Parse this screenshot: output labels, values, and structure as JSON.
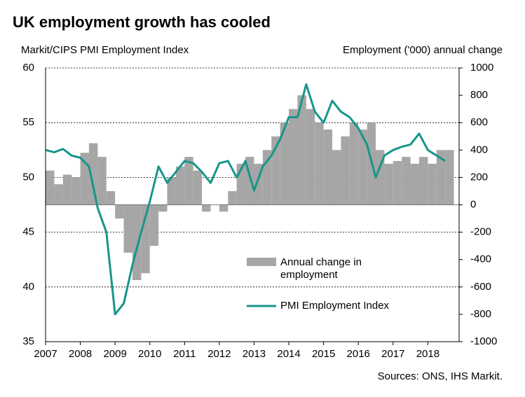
{
  "chart_data": {
    "type": "bar-line",
    "title": "UK employment growth has cooled",
    "y_label": "Markit/CIPS PMI Employment Index",
    "y2_label": "Employment ('000) annual change",
    "source": "Sources: ONS,  IHS Markit.",
    "xlim": [
      2007,
      2018.9
    ],
    "xticks": [
      2007,
      2008,
      2009,
      2010,
      2011,
      2012,
      2013,
      2014,
      2015,
      2016,
      2017,
      2018
    ],
    "ylim": [
      35,
      60
    ],
    "yticks": [
      35,
      40,
      45,
      50,
      55,
      60
    ],
    "y2lim": [
      -1000,
      1000
    ],
    "y2ticks": [
      -1000,
      -800,
      -600,
      -400,
      -200,
      0,
      200,
      400,
      600,
      800,
      1000
    ],
    "grid": true,
    "legend": "lower-center",
    "x": [
      2007,
      2007.25,
      2007.5,
      2007.75,
      2008,
      2008.25,
      2008.5,
      2008.75,
      2009,
      2009.25,
      2009.5,
      2009.75,
      2010,
      2010.25,
      2010.5,
      2010.75,
      2011,
      2011.25,
      2011.5,
      2011.75,
      2012,
      2012.25,
      2012.5,
      2012.75,
      2013,
      2013.25,
      2013.5,
      2013.75,
      2014,
      2014.25,
      2014.5,
      2014.75,
      2015,
      2015.25,
      2015.5,
      2015.75,
      2016,
      2016.25,
      2016.5,
      2016.75,
      2017,
      2017.25,
      2017.5,
      2017.75,
      2018,
      2018.25,
      2018.5
    ],
    "series": [
      {
        "name": "Annual change in employment",
        "type": "bar",
        "axis": "y2",
        "color": "#a6a6a6",
        "values": [
          250,
          150,
          220,
          200,
          380,
          450,
          350,
          100,
          -100,
          -350,
          -550,
          -500,
          -300,
          -50,
          200,
          280,
          350,
          250,
          -50,
          0,
          -50,
          100,
          300,
          350,
          300,
          400,
          500,
          600,
          700,
          800,
          700,
          600,
          550,
          400,
          500,
          600,
          550,
          600,
          400,
          300,
          320,
          350,
          300,
          350,
          300,
          400,
          400
        ]
      },
      {
        "name": "PMI Employment Index",
        "type": "line",
        "axis": "y",
        "color": "#16968a",
        "values": [
          52.5,
          52.3,
          52.6,
          52.0,
          51.8,
          51.0,
          47.2,
          45.0,
          37.5,
          38.5,
          42.0,
          45.0,
          47.8,
          51.0,
          49.5,
          50.5,
          51.5,
          51.3,
          50.5,
          49.5,
          51.3,
          51.5,
          50.0,
          51.5,
          48.8,
          51.0,
          52.0,
          53.5,
          55.5,
          55.5,
          58.5,
          56.0,
          55.0,
          57.0,
          56.0,
          55.5,
          54.5,
          53.0,
          50.0,
          52.0,
          52.5,
          52.8,
          53.0,
          54.0,
          52.5,
          52.0,
          51.5
        ]
      }
    ]
  }
}
